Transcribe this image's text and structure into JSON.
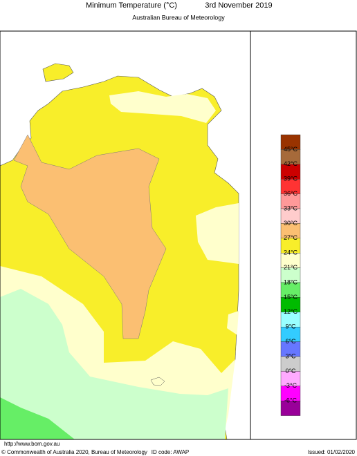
{
  "header": {
    "title": "Minimum Temperature (°C)",
    "date": "3rd November 2019",
    "subtitle": "Australian Bureau of Meteorology"
  },
  "legend": {
    "labels": [
      "45°C",
      "42°C",
      "39°C",
      "36°C",
      "33°C",
      "30°C",
      "27°C",
      "24°C",
      "21°C",
      "18°C",
      "15°C",
      "12°C",
      "9°C",
      "6°C",
      "3°C",
      "0°C",
      "-3°C",
      "-6°C"
    ],
    "colors": [
      "#993300",
      "#a66a3a",
      "#cc0000",
      "#ff3333",
      "#ff9999",
      "#ffcccc",
      "#fbbf72",
      "#f8ee2a",
      "#ffffcc",
      "#ccffcc",
      "#66ee66",
      "#00bb00",
      "#99ffff",
      "#33ccff",
      "#6677ff",
      "#cccccc",
      "#ffaaff",
      "#ff00ff",
      "#990099"
    ]
  },
  "footer": {
    "url": "http://www.bom.gov.au",
    "copyright": "© Commonwealth of Australia 2020, Bureau of Meteorology",
    "id_code": "ID code: AWAP",
    "issued": "Issued: 01/02/2020"
  }
}
